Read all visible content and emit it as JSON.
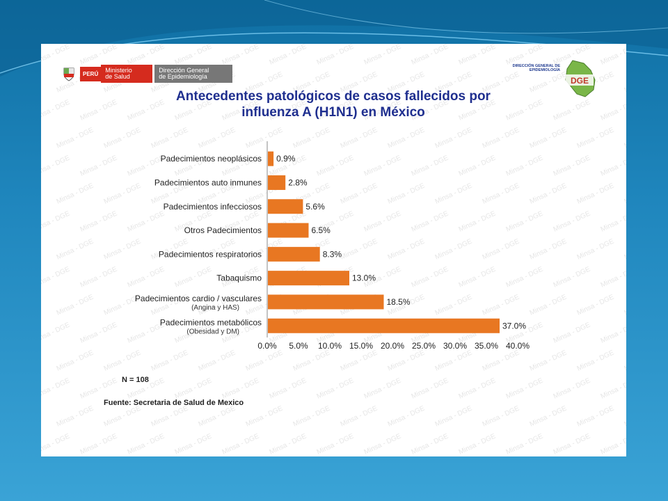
{
  "header": {
    "peru": "PERÚ",
    "ministerio_line1": "Ministerio",
    "ministerio_line2": "de Salud",
    "dge_line1": "Dirección General",
    "dge_line2": "de Epidemiología",
    "right_logo_line1": "DIRECCIÓN GENERAL DE",
    "right_logo_line2": "EPIDEMIOLOGÍA",
    "right_logo_mark": "DGE"
  },
  "watermark_text": "Minsa - DGE",
  "title_line1": "Antecedentes patológicos de casos fallecidos por",
  "title_line2": "influenza A (H1N1) en México",
  "n_label": "N = 108",
  "source": "Fuente: Secretaria de Salud de Mexico",
  "colors": {
    "bar": "#e87722",
    "background_top": "#0f6fa3",
    "title": "#1f2f8f"
  },
  "chart_data": {
    "type": "bar",
    "orientation": "horizontal",
    "categories": [
      "Padecimientos neoplásicos",
      "Padecimientos auto inmunes",
      "Padecimientos infecciosos",
      "Otros Padecimientos",
      "Padecimientos respiratorios",
      "Tabaquismo",
      "Padecimientos cardio / vasculares",
      "Padecimientos metabólicos"
    ],
    "subcategories": [
      "",
      "",
      "",
      "",
      "",
      "",
      "(Angina y HAS)",
      "(Obesidad y DM)"
    ],
    "values": [
      0.9,
      2.8,
      5.6,
      6.5,
      8.3,
      13.0,
      18.5,
      37.0
    ],
    "value_labels": [
      "0.9%",
      "2.8%",
      "5.6%",
      "6.5%",
      "8.3%",
      "13.0%",
      "18.5%",
      "37.0%"
    ],
    "xlim": [
      0,
      40
    ],
    "xticks": [
      "0.0%",
      "5.0%",
      "10.0%",
      "15.0%",
      "20.0%",
      "25.0%",
      "30.0%",
      "35.0%",
      "40.0%"
    ],
    "grid": false,
    "legend": "none"
  }
}
